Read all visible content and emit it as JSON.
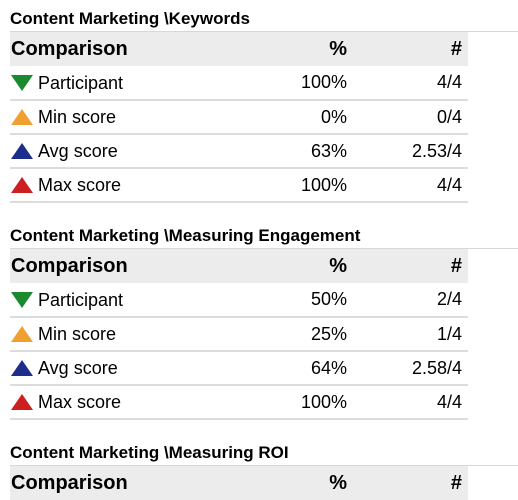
{
  "icons": {
    "participant": {
      "name": "down-triangle-icon",
      "color": "#1a8a2e"
    },
    "min": {
      "name": "up-triangle-icon",
      "color": "#f0a030"
    },
    "avg": {
      "name": "up-triangle-icon",
      "color": "#1c2d8c"
    },
    "max": {
      "name": "up-triangle-icon",
      "color": "#cc1f1f"
    }
  },
  "sections": [
    {
      "title": "Content Marketing \\Keywords",
      "header": {
        "comparison": "Comparison",
        "percent": "%",
        "count": "#"
      },
      "rows": [
        {
          "label": "Participant",
          "percent": "100%",
          "count": "4/4"
        },
        {
          "label": "Min score",
          "percent": "0%",
          "count": "0/4"
        },
        {
          "label": "Avg score",
          "percent": "63%",
          "count": "2.53/4"
        },
        {
          "label": "Max score",
          "percent": "100%",
          "count": "4/4"
        }
      ]
    },
    {
      "title": "Content Marketing \\Measuring Engagement",
      "header": {
        "comparison": "Comparison",
        "percent": "%",
        "count": "#"
      },
      "rows": [
        {
          "label": "Participant",
          "percent": "50%",
          "count": "2/4"
        },
        {
          "label": "Min score",
          "percent": "25%",
          "count": "1/4"
        },
        {
          "label": "Avg score",
          "percent": "64%",
          "count": "2.58/4"
        },
        {
          "label": "Max score",
          "percent": "100%",
          "count": "4/4"
        }
      ]
    },
    {
      "title": "Content Marketing \\Measuring ROI",
      "header": {
        "comparison": "Comparison",
        "percent": "%",
        "count": "#"
      },
      "rows": []
    }
  ]
}
